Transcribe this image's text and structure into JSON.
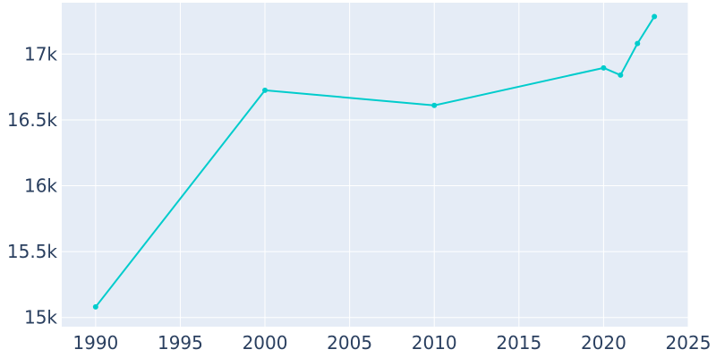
{
  "chart_data": {
    "type": "line",
    "title": "",
    "xlabel": "",
    "ylabel": "",
    "grid": true,
    "plot_bg": "#e5ecf6",
    "line_color": "#00cccc",
    "tick_color": "#2a3f5f",
    "xlim": [
      1988,
      2025
    ],
    "ylim": [
      14930,
      17390
    ],
    "x_ticks": [
      1990,
      1995,
      2000,
      2005,
      2010,
      2015,
      2020,
      2025
    ],
    "x_tick_labels": [
      "1990",
      "1995",
      "2000",
      "2005",
      "2010",
      "2015",
      "2020",
      "2025"
    ],
    "y_ticks": [
      15000,
      15500,
      16000,
      16500,
      17000
    ],
    "y_tick_labels": [
      "15k",
      "15.5k",
      "16k",
      "16.5k",
      "17k"
    ],
    "series": [
      {
        "x": [
          1990,
          2000,
          2010,
          2020,
          2021,
          2022,
          2023
        ],
        "y": [
          15080,
          16725,
          16610,
          16895,
          16840,
          17080,
          17285
        ]
      }
    ]
  }
}
